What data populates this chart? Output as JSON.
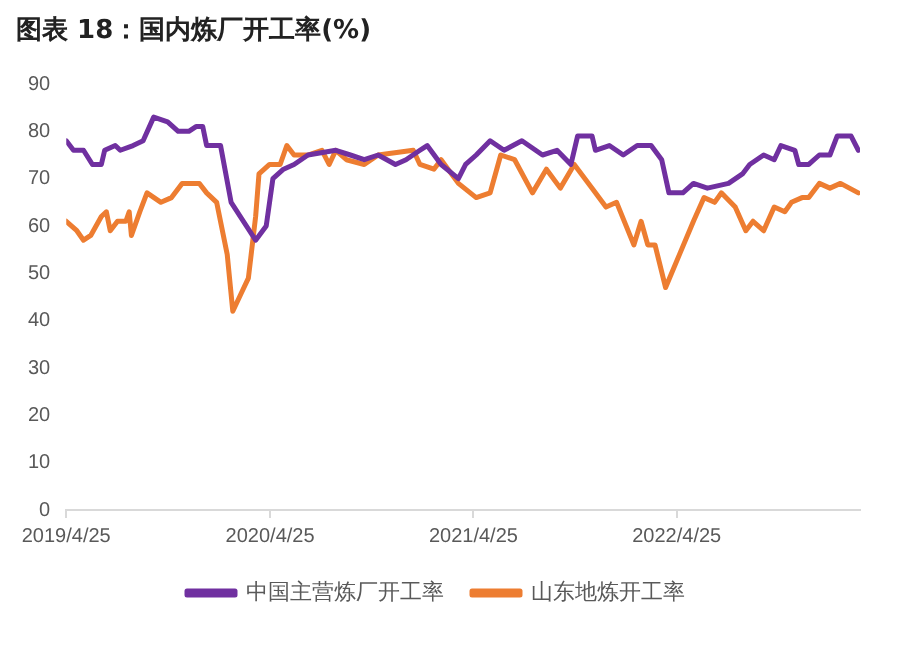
{
  "chart_data": {
    "type": "line",
    "title": "图表 18：国内炼厂开工率(%)",
    "xlim": [
      "2019-04-25",
      "2023-03-20"
    ],
    "xticks": [
      {
        "value": "2019-04-25",
        "label": "2019/4/25"
      },
      {
        "value": "2020-04-25",
        "label": "2020/4/25"
      },
      {
        "value": "2021-04-25",
        "label": "2021/4/25"
      },
      {
        "value": "2022-04-25",
        "label": "2022/4/25"
      }
    ],
    "ylim": [
      0,
      90
    ],
    "yticks": [
      0,
      10,
      20,
      30,
      40,
      50,
      60,
      70,
      80,
      90
    ],
    "grid": false,
    "legend": "bottom",
    "marker": "none",
    "line_style": "solid",
    "series": [
      {
        "name": "中国主营炼厂开工率",
        "color": "#7030a0",
        "x": [
          "2019-04-25",
          "2019-05-08",
          "2019-05-26",
          "2019-06-11",
          "2019-06-27",
          "2019-07-03",
          "2019-07-22",
          "2019-07-31",
          "2019-08-23",
          "2019-09-10",
          "2019-09-29",
          "2019-10-24",
          "2019-11-12",
          "2019-12-01",
          "2019-12-14",
          "2019-12-26",
          "2020-01-02",
          "2020-01-27",
          "2020-02-15",
          "2020-03-30",
          "2020-04-18",
          "2020-04-30",
          "2020-05-19",
          "2020-06-07",
          "2020-07-02",
          "2020-08-21",
          "2020-09-16",
          "2020-10-11",
          "2020-11-05",
          "2020-12-06",
          "2020-12-25",
          "2021-01-19",
          "2021-02-01",
          "2021-02-26",
          "2021-03-29",
          "2021-04-11",
          "2021-04-30",
          "2021-05-25",
          "2021-06-19",
          "2021-07-21",
          "2021-08-27",
          "2021-09-22",
          "2021-10-17",
          "2021-10-29",
          "2021-11-24",
          "2021-11-30",
          "2021-12-25",
          "2022-01-19",
          "2022-02-13",
          "2022-03-10",
          "2022-03-29",
          "2022-04-11",
          "2022-05-06",
          "2022-05-25",
          "2022-06-19",
          "2022-07-27",
          "2022-08-21",
          "2022-09-03",
          "2022-09-28",
          "2022-10-17",
          "2022-10-29",
          "2022-11-23",
          "2022-11-30",
          "2022-12-18",
          "2023-01-06",
          "2023-01-25",
          "2023-02-07",
          "2023-03-04",
          "2023-03-17"
        ],
        "values": [
          78,
          76,
          76,
          73,
          73,
          76,
          77,
          76,
          77,
          78,
          83,
          82,
          80,
          80,
          81,
          81,
          77,
          77,
          65,
          57,
          60,
          70,
          72,
          73,
          75,
          76,
          75,
          74,
          75,
          73,
          74,
          76,
          77,
          73,
          70,
          73,
          75,
          78,
          76,
          78,
          75,
          76,
          73,
          79,
          79,
          76,
          77,
          75,
          77,
          77,
          74,
          67,
          67,
          69,
          68,
          69,
          71,
          73,
          75,
          74,
          77,
          76,
          73,
          73,
          75,
          75,
          79,
          79,
          76
        ]
      },
      {
        "name": "山东地炼开工率",
        "color": "#ed7d31",
        "x": [
          "2019-04-25",
          "2019-05-14",
          "2019-05-26",
          "2019-06-08",
          "2019-06-27",
          "2019-07-06",
          "2019-07-13",
          "2019-07-26",
          "2019-08-10",
          "2019-08-16",
          "2019-08-20",
          "2019-09-04",
          "2019-09-17",
          "2019-10-12",
          "2019-10-31",
          "2019-11-19",
          "2019-12-07",
          "2019-12-20",
          "2020-01-02",
          "2020-01-20",
          "2020-02-08",
          "2020-02-18",
          "2020-03-05",
          "2020-03-17",
          "2020-03-30",
          "2020-04-05",
          "2020-04-24",
          "2020-05-13",
          "2020-05-25",
          "2020-06-07",
          "2020-07-02",
          "2020-07-27",
          "2020-08-09",
          "2020-08-21",
          "2020-09-09",
          "2020-10-11",
          "2020-11-05",
          "2021-01-07",
          "2021-01-19",
          "2021-02-13",
          "2021-02-26",
          "2021-03-29",
          "2021-04-30",
          "2021-05-25",
          "2021-06-13",
          "2021-07-08",
          "2021-08-09",
          "2021-09-03",
          "2021-09-28",
          "2021-10-23",
          "2021-11-24",
          "2021-12-19",
          "2022-01-07",
          "2022-02-07",
          "2022-02-20",
          "2022-03-04",
          "2022-03-17",
          "2022-04-05",
          "2022-04-30",
          "2022-05-25",
          "2022-06-13",
          "2022-07-02",
          "2022-07-14",
          "2022-08-08",
          "2022-08-27",
          "2022-09-09",
          "2022-09-28",
          "2022-10-17",
          "2022-11-05",
          "2022-11-17",
          "2022-12-06",
          "2022-12-18",
          "2023-01-06",
          "2023-01-25",
          "2023-02-13",
          "2023-03-17"
        ],
        "values": [
          61,
          59,
          57,
          58,
          62,
          63,
          59,
          61,
          61,
          63,
          58,
          63,
          67,
          65,
          66,
          69,
          69,
          69,
          67,
          65,
          54,
          42,
          46,
          49,
          62,
          71,
          73,
          73,
          77,
          75,
          75,
          76,
          73,
          76,
          74,
          73,
          75,
          76,
          73,
          72,
          74,
          69,
          66,
          67,
          75,
          74,
          67,
          72,
          68,
          73,
          68,
          64,
          65,
          56,
          61,
          56,
          56,
          47,
          54,
          61,
          66,
          65,
          67,
          64,
          59,
          61,
          59,
          64,
          63,
          65,
          66,
          66,
          69,
          68,
          69,
          67
        ]
      }
    ]
  }
}
